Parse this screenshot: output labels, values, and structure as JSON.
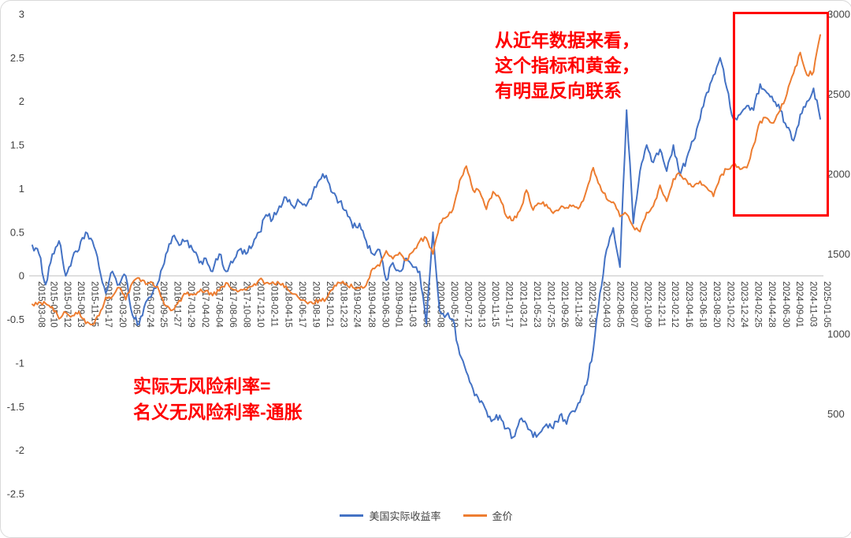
{
  "page": {
    "background": "#ffffff"
  },
  "annotations": {
    "top_right": {
      "lines": [
        "从近年数据来看，",
        "这个指标和黄金，",
        "有明显反向联系"
      ],
      "color": "#ff0000"
    },
    "bottom_left": {
      "lines": [
        "实际无风险利率=",
        "名义无风险利率-通胀"
      ],
      "color": "#ff0000"
    },
    "highlight_box": {
      "color": "#ff0000"
    }
  },
  "legend": {
    "items": [
      {
        "label": "美国实际收益率",
        "color": "#4472c4"
      },
      {
        "label": "金价",
        "color": "#ed7d31"
      }
    ]
  },
  "chart_data": {
    "type": "line",
    "title": "",
    "xlabel": "",
    "ylabel_left": "",
    "ylabel_right": "",
    "grid": "zero-line-only",
    "legend_position": "bottom-center",
    "left_axis": {
      "range": [
        -2.5,
        3
      ],
      "ticks": [
        "3",
        "2.5",
        "2",
        "1.5",
        "1",
        "0.5",
        "0",
        "-0.5",
        "-1",
        "-1.5",
        "-2",
        "-2.5"
      ]
    },
    "right_axis": {
      "range": [
        0,
        3000
      ],
      "ticks": [
        "3000",
        "2500",
        "2000",
        "1500",
        "1000",
        "500"
      ]
    },
    "x_start_month": "2015-03",
    "x_frequency": "monthly-estimated-from-weekly-chart",
    "x_tick_labels": [
      "2015-03-08",
      "2015-05-10",
      "2015-07-12",
      "2015-09-13",
      "2015-11-15",
      "2016-01-17",
      "2016-03-20",
      "2016-05-22",
      "2016-07-24",
      "2016-09-25",
      "2016-11-27",
      "2017-01-29",
      "2017-04-02",
      "2017-06-04",
      "2017-08-06",
      "2017-10-08",
      "2017-12-10",
      "2018-02-11",
      "2018-04-15",
      "2018-06-17",
      "2018-08-19",
      "2018-10-21",
      "2018-12-23",
      "2019-02-24",
      "2019-04-28",
      "2019-06-30",
      "2019-09-01",
      "2019-11-03",
      "2020-01-05",
      "2020-03-08",
      "2020-05-10",
      "2020-07-12",
      "2020-09-13",
      "2020-11-15",
      "2021-01-17",
      "2021-03-21",
      "2021-05-23",
      "2021-07-25",
      "2021-09-26",
      "2021-11-28",
      "2022-01-30",
      "2022-04-03",
      "2022-06-05",
      "2022-08-07",
      "2022-10-09",
      "2022-12-11",
      "2023-02-12",
      "2023-04-16",
      "2023-06-18",
      "2023-08-20",
      "2023-10-22",
      "2023-12-24",
      "2024-02-25",
      "2024-04-28",
      "2024-06-30",
      "2024-09-01",
      "2024-11-03",
      "2025-01-05"
    ],
    "series": [
      {
        "name": "美国实际收益率",
        "axis": "left",
        "color": "#4472c4",
        "monthly_values": [
          0.35,
          0.25,
          -0.1,
          0.25,
          0.4,
          0,
          0.2,
          0.3,
          0.5,
          0.4,
          0.1,
          -0.2,
          0.05,
          -0.1,
          0,
          -0.45,
          -0.55,
          -0.3,
          -0.2,
          -0.05,
          0.25,
          0.45,
          0.35,
          0.4,
          0.3,
          0.15,
          0.2,
          0.05,
          0.25,
          0.05,
          0.15,
          0.3,
          0.25,
          0.35,
          0.5,
          0.7,
          0.65,
          0.8,
          0.9,
          0.8,
          0.85,
          0.8,
          0.95,
          1.1,
          1.15,
          0.95,
          0.85,
          0.75,
          0.55,
          0.6,
          0.4,
          0.25,
          0.3,
          -0.05,
          0.15,
          0.05,
          0.2,
          0.1,
          0.05,
          -0.55,
          0.5,
          -0.4,
          -0.45,
          -0.5,
          -0.9,
          -1.1,
          -1.3,
          -1.45,
          -1.55,
          -1.65,
          -1.6,
          -1.75,
          -1.85,
          -1.65,
          -1.7,
          -1.85,
          -1.8,
          -1.7,
          -1.75,
          -1.6,
          -1.7,
          -1.55,
          -1.45,
          -1.25,
          -0.85,
          -0.2,
          0.3,
          0.55,
          0.1,
          1.9,
          0.6,
          1.2,
          1.5,
          1.3,
          1.45,
          1.2,
          1.5,
          1.15,
          1.35,
          1.55,
          1.8,
          2.1,
          2.3,
          2.5,
          2.15,
          1.8,
          1.85,
          1.95,
          1.9,
          2.2,
          2.1,
          2,
          1.9,
          1.7,
          1.55,
          1.85,
          2,
          2.15,
          1.8
        ]
      },
      {
        "name": "金价",
        "axis": "right",
        "color": "#ed7d31",
        "monthly_values": [
          1185,
          1200,
          1190,
          1170,
          1095,
          1135,
          1115,
          1140,
          1065,
          1060,
          1115,
          1230,
          1235,
          1290,
          1215,
          1320,
          1350,
          1310,
          1320,
          1270,
          1175,
          1150,
          1210,
          1250,
          1245,
          1265,
          1270,
          1240,
          1270,
          1320,
          1280,
          1270,
          1275,
          1300,
          1340,
          1320,
          1325,
          1315,
          1300,
          1250,
          1220,
          1200,
          1190,
          1215,
          1220,
          1280,
          1320,
          1315,
          1290,
          1285,
          1305,
          1410,
          1425,
          1520,
          1470,
          1510,
          1460,
          1515,
          1580,
          1600,
          1500,
          1690,
          1730,
          1780,
          1960,
          2050,
          1900,
          1890,
          1780,
          1890,
          1850,
          1735,
          1710,
          1770,
          1900,
          1775,
          1815,
          1810,
          1755,
          1785,
          1790,
          1805,
          1795,
          1900,
          2040,
          1930,
          1845,
          1825,
          1735,
          1750,
          1670,
          1640,
          1760,
          1800,
          1930,
          1830,
          1970,
          2000,
          1960,
          1920,
          1955,
          1915,
          1860,
          1985,
          2030,
          2060,
          2030,
          2040,
          2180,
          2330,
          2350,
          2320,
          2400,
          2500,
          2630,
          2760,
          2620,
          2640,
          2870
        ]
      }
    ]
  }
}
